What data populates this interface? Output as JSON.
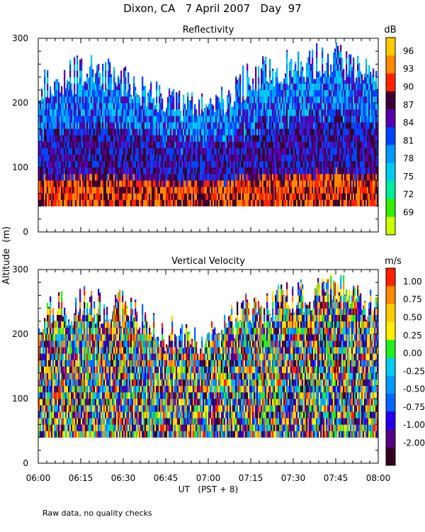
{
  "page": {
    "title": "Dixon, CA   7 April 2007   Day  97",
    "shared_ylabel": "Altitude  (m)",
    "xlabel": "UT   (PST + 8)",
    "footnote": "Raw data, no quality checks"
  },
  "colors": {
    "reflectivity_scale": [
      "#ccff00",
      "#33ee00",
      "#00ee99",
      "#00ccee",
      "#0099ff",
      "#0044ff",
      "#5500aa",
      "#3a0033",
      "#ff2200",
      "#ff8800",
      "#ffcc00"
    ],
    "velocity_scale": [
      "#330022",
      "#550088",
      "#2200ee",
      "#0066ff",
      "#0099ff",
      "#00ccee",
      "#22ee22",
      "#ffee00",
      "#ffcc00",
      "#ff8800",
      "#ff2200"
    ],
    "axis": "#000000"
  },
  "chart_data": [
    {
      "type": "heatmap",
      "title": "Reflectivity",
      "colorbar_label": "dB",
      "colorbar_ticks": [
        "96",
        "93",
        "90",
        "87",
        "84",
        "81",
        "78",
        "75",
        "72",
        "69"
      ],
      "colorbar_values": [
        96,
        93,
        90,
        87,
        84,
        81,
        78,
        75,
        72,
        69
      ],
      "value_range": [
        69,
        96
      ],
      "x_ticks": [
        "06:00",
        "06:15",
        "06:30",
        "06:45",
        "07:00",
        "07:15",
        "07:30",
        "07:45",
        "08:00"
      ],
      "x_range": [
        "06:00",
        "08:00"
      ],
      "y_ticks": [
        0,
        100,
        200,
        300
      ],
      "ylim": [
        0,
        300
      ],
      "data_floor": 40,
      "cloud_top_by_quarter_hour": [
        230,
        245,
        240,
        200,
        190,
        240,
        255,
        270,
        235
      ],
      "grid": false
    },
    {
      "type": "heatmap",
      "title": "Vertical Velocity",
      "colorbar_label": "m/s",
      "colorbar_ticks": [
        "1.00",
        "0.75",
        "0.50",
        "0.25",
        "0.00",
        "-0.25",
        "-0.50",
        "-0.75",
        "-1.00",
        "-2.00"
      ],
      "colorbar_values": [
        1.0,
        0.75,
        0.5,
        0.25,
        0.0,
        -0.25,
        -0.5,
        -0.75,
        -1.0,
        -2.0
      ],
      "value_range": [
        -2.0,
        1.0
      ],
      "x_ticks": [
        "06:00",
        "06:15",
        "06:30",
        "06:45",
        "07:00",
        "07:15",
        "07:30",
        "07:45",
        "08:00"
      ],
      "x_range": [
        "06:00",
        "08:00"
      ],
      "y_ticks": [
        0,
        100,
        200,
        300
      ],
      "ylim": [
        0,
        300
      ],
      "data_floor": 40,
      "cloud_top_by_quarter_hour": [
        230,
        245,
        240,
        200,
        190,
        240,
        255,
        270,
        235
      ],
      "grid": false
    }
  ]
}
